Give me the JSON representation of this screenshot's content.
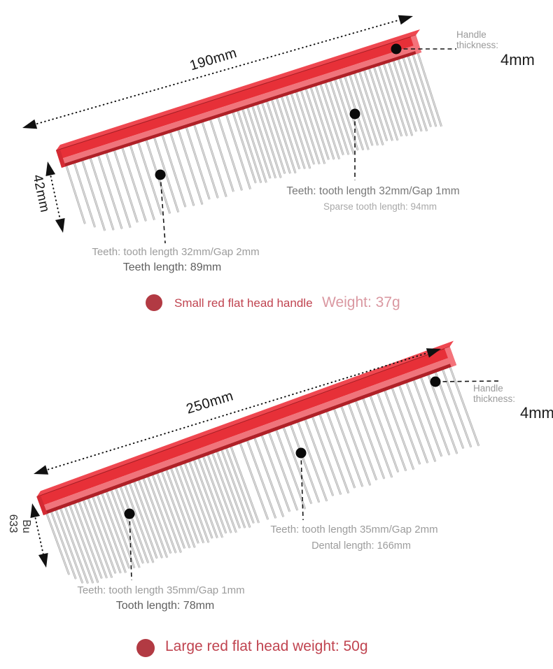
{
  "small_comb": {
    "length": "190mm",
    "height": "42mm",
    "handle_thickness_label": "Handle thickness:",
    "handle_thickness_value": "4mm",
    "fine_teeth_note": "Teeth: tooth length 32mm/Gap 1mm",
    "fine_teeth_sub_note": "Sparse tooth length: 94mm",
    "coarse_teeth_note": "Teeth: tooth length 32mm/Gap 2mm",
    "coarse_teeth_sub_note": "Teeth length: 89mm",
    "caption": "Small red flat head handle",
    "weight_note": "Weight: 37g"
  },
  "large_comb": {
    "length": "250mm",
    "vertical_labels": [
      "Bu",
      "633"
    ],
    "handle_thickness_label": "Handle thickness:",
    "handle_thickness_value": "4mm",
    "coarse_teeth_note": "Teeth: tooth length 35mm/Gap 2mm",
    "coarse_teeth_sub_note": "Dental length: 166mm",
    "fine_teeth_note": "Teeth: tooth length 35mm/Gap 1mm",
    "fine_teeth_sub_note": "Tooth length: 78mm",
    "caption": "Large red flat head weight: 50g"
  },
  "colors": {
    "handle_red": "#e73038",
    "handle_red_dark": "#b02027",
    "handle_red_light": "#f0747b",
    "bullet_red": "#b23a43",
    "caption_red": "#c04450",
    "weight_pink": "#da98a1"
  }
}
